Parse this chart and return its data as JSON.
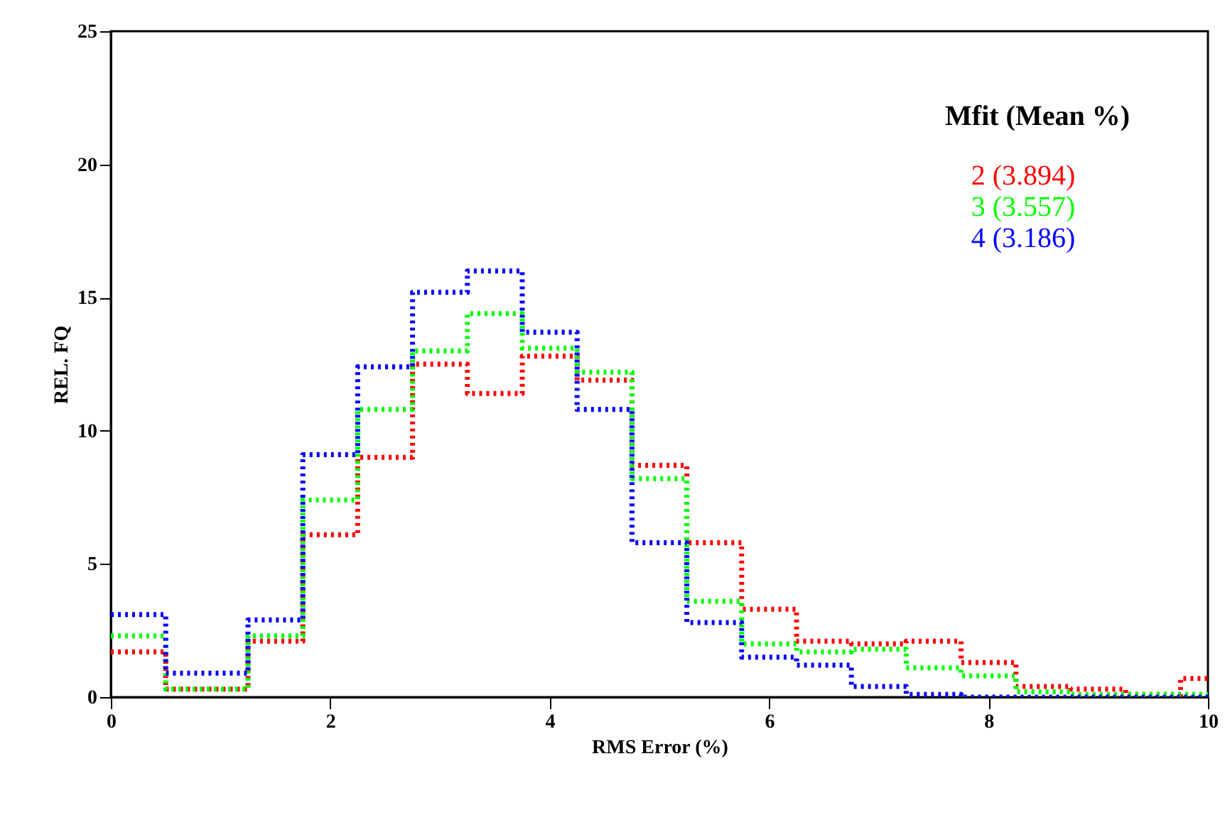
{
  "chart_data": {
    "type": "histogram",
    "xlabel": "RMS Error (%)",
    "ylabel": "REL. FQ",
    "legend_title": "Mfit (Mean %)",
    "bins": [
      0,
      0.5,
      1.25,
      1.75,
      2.25,
      2.75,
      3.25,
      3.75,
      4.25,
      4.75,
      5.25,
      5.75,
      6.25,
      6.75,
      7.25,
      7.75,
      8.25,
      8.75,
      9.25,
      9.75,
      10
    ],
    "series": [
      {
        "name": "2 (3.894)",
        "color": "#ff0000",
        "values": [
          1.7,
          0.3,
          2.1,
          6.1,
          9.0,
          12.5,
          11.4,
          12.8,
          11.9,
          8.7,
          5.8,
          3.3,
          2.1,
          2.0,
          2.1,
          1.3,
          0.4,
          0.3,
          0.1,
          0.7
        ]
      },
      {
        "name": "3 (3.557)",
        "color": "#00ff00",
        "values": [
          2.3,
          0.3,
          2.3,
          7.4,
          10.8,
          13.0,
          14.4,
          13.1,
          12.2,
          8.2,
          3.6,
          2.0,
          1.7,
          1.8,
          1.1,
          0.8,
          0.2,
          0.1,
          0.1,
          0.1
        ]
      },
      {
        "name": "4 (3.186)",
        "color": "#0000ff",
        "values": [
          3.1,
          0.9,
          2.9,
          9.1,
          12.4,
          15.2,
          16.0,
          13.7,
          10.8,
          5.8,
          2.8,
          1.5,
          1.2,
          0.4,
          0.1,
          0.0,
          0.0,
          0.0,
          0.0,
          0.0
        ]
      }
    ],
    "xlim": [
      0,
      10
    ],
    "xticks": [
      0,
      2,
      4,
      6,
      8,
      10
    ],
    "ylim": [
      0,
      25
    ],
    "yticks": [
      0,
      5,
      10,
      15,
      20,
      25
    ],
    "grid": false,
    "legend": "top right",
    "line_style": "dotted"
  }
}
